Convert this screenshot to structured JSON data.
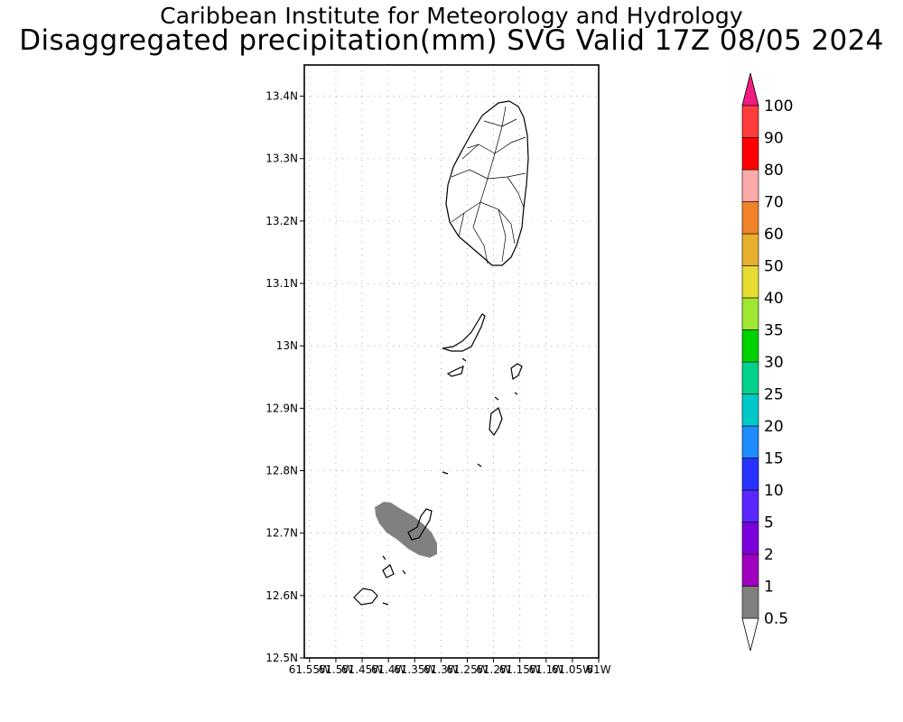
{
  "title": {
    "line1": "Caribbean Institute for Meteorology and Hydrology",
    "line2": "Disaggregated precipitation(mm) SVG Valid 17Z 08/05 2024"
  },
  "map": {
    "lat_range": [
      12.5,
      13.45
    ],
    "lon_range": [
      -61.56,
      -61.0
    ],
    "lat_ticks": [
      {
        "value": 13.4,
        "label": "13.4N"
      },
      {
        "value": 13.3,
        "label": "13.3N"
      },
      {
        "value": 13.2,
        "label": "13.2N"
      },
      {
        "value": 13.1,
        "label": "13.1N"
      },
      {
        "value": 13.0,
        "label": "13N"
      },
      {
        "value": 12.9,
        "label": "12.9N"
      },
      {
        "value": 12.8,
        "label": "12.8N"
      },
      {
        "value": 12.7,
        "label": "12.7N"
      },
      {
        "value": 12.6,
        "label": "12.6N"
      },
      {
        "value": 12.5,
        "label": "12.5N"
      }
    ],
    "lon_ticks": [
      {
        "value": -61.55,
        "label": "61.55W"
      },
      {
        "value": -61.5,
        "label": "61.5W"
      },
      {
        "value": -61.45,
        "label": "61.45W"
      },
      {
        "value": -61.4,
        "label": "61.4W"
      },
      {
        "value": -61.35,
        "label": "61.35W"
      },
      {
        "value": -61.3,
        "label": "61.3W"
      },
      {
        "value": -61.25,
        "label": "61.25W"
      },
      {
        "value": -61.2,
        "label": "61.2W"
      },
      {
        "value": -61.15,
        "label": "61.15W"
      },
      {
        "value": -61.1,
        "label": "61.1W"
      },
      {
        "value": -61.05,
        "label": "61.05W"
      },
      {
        "value": -61.0,
        "label": "61W"
      }
    ],
    "grid": "dotted",
    "precip_area": {
      "range_mm": "0.5-1",
      "color": "#808080"
    }
  },
  "colorbar": {
    "labels": [
      "0.5",
      "1",
      "2",
      "5",
      "10",
      "15",
      "20",
      "25",
      "30",
      "35",
      "40",
      "50",
      "60",
      "70",
      "80",
      "90",
      "100"
    ],
    "colors": [
      "#808080",
      "#a000c0",
      "#7a00dc",
      "#5a28ff",
      "#2832ff",
      "#1e8cff",
      "#00c8c8",
      "#00d28c",
      "#00d200",
      "#a0e632",
      "#e6dc32",
      "#e6af2d",
      "#f08228",
      "#ffaaaa",
      "#ff0000",
      "#ff3c3c"
    ],
    "over_color": "#f01e82",
    "under_color": "#ffffff"
  }
}
